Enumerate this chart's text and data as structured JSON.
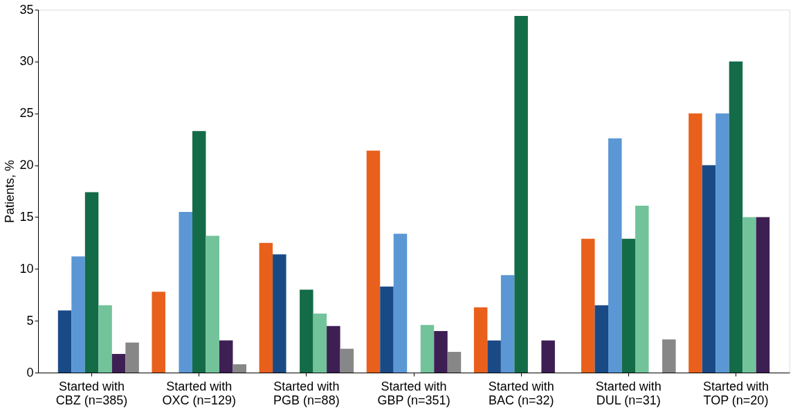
{
  "chart_data": {
    "type": "bar",
    "ylabel": "Patients, %",
    "categories": [
      "Started with\nCBZ (n=385)",
      "Started with\nOXC (n=129)",
      "Started with\nPGB (n=88)",
      "Started with\nGBP (n=351)",
      "Started with\nBAC (n=32)",
      "Started with\nDUL (n=31)",
      "Started with\nTOP (n=20)"
    ],
    "series": [
      {
        "color": "#e8601c",
        "values": [
          null,
          7.8,
          12.5,
          21.4,
          6.3,
          12.9,
          25
        ]
      },
      {
        "color": "#1a4a85",
        "values": [
          6.0,
          null,
          11.4,
          8.3,
          3.1,
          6.5,
          20
        ]
      },
      {
        "color": "#5b97d4",
        "values": [
          11.2,
          15.5,
          null,
          13.4,
          9.4,
          22.6,
          25
        ]
      },
      {
        "color": "#146b48",
        "values": [
          17.4,
          23.3,
          8.0,
          null,
          34.4,
          12.9,
          30
        ]
      },
      {
        "color": "#72c39a",
        "values": [
          6.5,
          13.2,
          5.7,
          4.6,
          null,
          16.1,
          15
        ]
      },
      {
        "color": "#3e1f54",
        "values": [
          1.8,
          3.1,
          4.5,
          4.0,
          3.1,
          null,
          15
        ]
      },
      {
        "color": "#878787",
        "values": [
          2.9,
          0.8,
          2.3,
          2.0,
          null,
          3.2,
          null
        ]
      }
    ],
    "ylim": [
      0,
      35
    ],
    "yticks": [
      0,
      5,
      10,
      15,
      20,
      25,
      30,
      35
    ],
    "grid": false,
    "legend": false
  }
}
